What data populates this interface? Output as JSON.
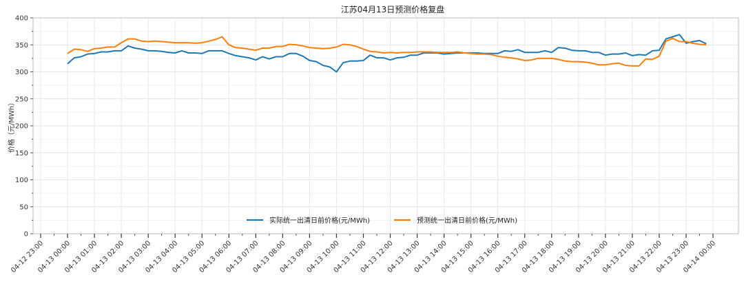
{
  "chart_data": {
    "type": "line",
    "title": "江苏04月13日预测价格复盘",
    "xlabel": "",
    "ylabel": "价格（元/MWh）",
    "ylim": [
      0,
      400
    ],
    "yticks": [
      0,
      50,
      100,
      150,
      200,
      250,
      300,
      350,
      400
    ],
    "xtick_labels": [
      "04-12 23:00",
      "04-13 00:00",
      "04-13 01:00",
      "04-13 02:00",
      "04-13 03:00",
      "04-13 04:00",
      "04-13 05:00",
      "04-13 06:00",
      "04-13 07:00",
      "04-13 08:00",
      "04-13 09:00",
      "04-13 10:00",
      "04-13 11:00",
      "04-13 12:00",
      "04-13 13:00",
      "04-13 14:00",
      "04-13 15:00",
      "04-13 16:00",
      "04-13 17:00",
      "04-13 18:00",
      "04-13 19:00",
      "04-13 20:00",
      "04-13 21:00",
      "04-13 22:00",
      "04-13 23:00",
      "04-14 00:00"
    ],
    "x_interval_minutes": 15,
    "x_start": "04-13 00:00",
    "grid": true,
    "legend_position": "lower center",
    "series": [
      {
        "name": "实际统一出清日前价格(元/MWh)",
        "color": "#1f77b4",
        "values": [
          315,
          326,
          328,
          333,
          334,
          337,
          337,
          339,
          339,
          348,
          344,
          342,
          339,
          339,
          338,
          336,
          335,
          339,
          335,
          335,
          334,
          339,
          339,
          339,
          334,
          330,
          328,
          326,
          322,
          328,
          324,
          328,
          328,
          334,
          334,
          329,
          321,
          319,
          312,
          309,
          300,
          317,
          320,
          320,
          321,
          331,
          326,
          326,
          322,
          326,
          327,
          331,
          331,
          335,
          335,
          335,
          333,
          334,
          335,
          335,
          335,
          335,
          334,
          334,
          334,
          339,
          338,
          341,
          336,
          336,
          336,
          339,
          336,
          345,
          344,
          340,
          339,
          339,
          336,
          336,
          331,
          333,
          333,
          335,
          330,
          332,
          331,
          339,
          340,
          361,
          365,
          369,
          353,
          356,
          358,
          352
        ]
      },
      {
        "name": "预测统一出清日前价格(元/MWh)",
        "color": "#ff7f0e",
        "values": [
          334,
          342,
          341,
          338,
          343,
          344,
          346,
          346,
          354,
          361,
          361,
          357,
          356,
          357,
          356,
          355,
          354,
          354,
          354,
          353,
          354,
          357,
          360,
          365,
          350,
          345,
          344,
          342,
          340,
          344,
          344,
          347,
          347,
          351,
          350,
          348,
          345,
          344,
          343,
          344,
          346,
          351,
          350,
          347,
          342,
          338,
          337,
          335,
          336,
          335,
          336,
          336,
          337,
          337,
          337,
          336,
          336,
          336,
          337,
          335,
          334,
          333,
          333,
          332,
          329,
          327,
          326,
          324,
          321,
          322,
          325,
          325,
          325,
          323,
          320,
          319,
          319,
          318,
          316,
          313,
          313,
          315,
          316,
          312,
          311,
          311,
          324,
          323,
          329,
          357,
          362,
          356,
          356,
          353,
          351,
          350
        ]
      }
    ]
  },
  "legend": {
    "items": [
      {
        "label": "实际统一出清日前价格(元/MWh)",
        "color": "#1f77b4"
      },
      {
        "label": "预测统一出清日前价格(元/MWh)",
        "color": "#ff7f0e"
      }
    ]
  }
}
